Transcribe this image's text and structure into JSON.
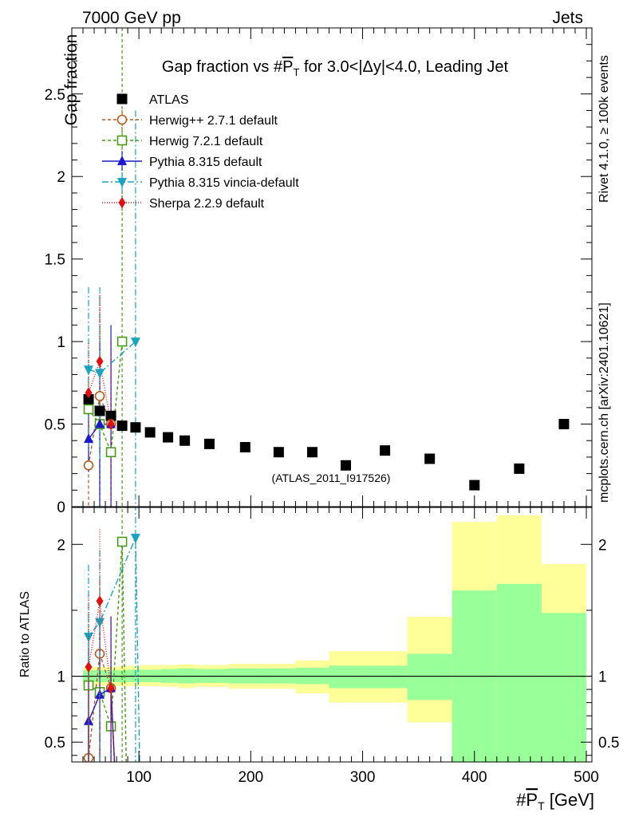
{
  "header": {
    "left": "7000 GeV pp",
    "right": "Jets"
  },
  "side_labels": {
    "rivet": "Rivet 4.1.0, ≥ 100k events",
    "mcplots": "mcplots.cern.ch [arXiv:2401.10621]"
  },
  "colors": {
    "atlas": "#000000",
    "herwigpp": "#b35a1f",
    "herwig7": "#4a9a1a",
    "pythia_default": "#1a1acc",
    "pythia_vincia": "#1aa3bf",
    "sherpa": "#e01010",
    "band_outer": "#ffff99",
    "band_inner": "#99ff99"
  },
  "chart_data": [
    {
      "type": "scatter",
      "panel": "main",
      "title": "Gap fraction vs #P_T for 3.0<|Δy|<4.0, Leading Jet",
      "title_pre": "Gap fraction vs #",
      "title_post": " for 3.0<|Δy|<4.0, Leading Jet",
      "ylabel": "Gap fraction",
      "watermark": "(ATLAS_2011_I917526)",
      "xlim": [
        40,
        505
      ],
      "ylim": [
        0,
        2.9
      ],
      "yticks": [
        0,
        0.5,
        1,
        1.5,
        2,
        2.5
      ],
      "ytick_labels": [
        "0",
        "0.5",
        "1",
        "1.5",
        "2",
        "2.5"
      ],
      "legend_position": "top-left",
      "series": [
        {
          "name": "ATLAS",
          "key": "atlas",
          "marker": "square-filled",
          "x": [
            55,
            65,
            75,
            85,
            97,
            110,
            126,
            141,
            163,
            195,
            225,
            255,
            285,
            320,
            360,
            400,
            440,
            480
          ],
          "y": [
            0.65,
            0.58,
            0.55,
            0.49,
            0.48,
            0.45,
            0.42,
            0.4,
            0.38,
            0.36,
            0.33,
            0.33,
            0.25,
            0.34,
            0.29,
            0.13,
            0.23,
            0.5
          ]
        },
        {
          "name": "Herwig++ 2.7.1 default",
          "key": "herwigpp",
          "marker": "circle-open",
          "dash": "4,3",
          "x": [
            55,
            65,
            75
          ],
          "y": [
            0.25,
            0.67,
            0.5
          ],
          "err": [
            0.25,
            0.6,
            0.5
          ]
        },
        {
          "name": "Herwig 7.2.1 default",
          "key": "herwig7",
          "marker": "square-open",
          "dash": "4,3",
          "x": [
            55,
            65,
            75,
            85
          ],
          "y": [
            0.59,
            0.5,
            0.33,
            1.0
          ],
          "err": [
            0.3,
            0.6,
            0.33,
            1.9
          ]
        },
        {
          "name": "Pythia 8.315 default",
          "key": "pythia_default",
          "marker": "triangle-up",
          "dash": "",
          "x": [
            55,
            65,
            75
          ],
          "y": [
            0.41,
            0.5,
            0.5
          ],
          "err": [
            0.2,
            0.5,
            0.6
          ]
        },
        {
          "name": "Pythia 8.315 vincia-default",
          "key": "pythia_vincia",
          "marker": "triangle-down",
          "dash": "8,3,2,3",
          "x": [
            55,
            65,
            97
          ],
          "y": [
            0.83,
            0.81,
            1.0
          ],
          "err": [
            0.5,
            0.52,
            1.4
          ]
        },
        {
          "name": "Sherpa 2.2.9 default",
          "key": "sherpa",
          "marker": "diamond",
          "dash": "1,2",
          "x": [
            55,
            65,
            75
          ],
          "y": [
            0.69,
            0.88,
            0.5
          ],
          "err": [
            0.3,
            0.4,
            0.5
          ]
        }
      ]
    },
    {
      "type": "area",
      "panel": "ratio",
      "ylabel": "Ratio to ATLAS",
      "xlabel_pre": "#",
      "xlabel_post": " [GeV]",
      "xlim": [
        40,
        505
      ],
      "ylim": [
        0.35,
        2.28
      ],
      "xticks": [
        100,
        200,
        300,
        400,
        500
      ],
      "xtick_labels": [
        "100",
        "200",
        "300",
        "400",
        "500"
      ],
      "yticks": [
        0.5,
        1,
        2
      ],
      "ytick_labels": [
        "0.5",
        "1",
        "2"
      ],
      "reference_line": 1,
      "bins": [
        {
          "lo": 50,
          "hi": 60,
          "outer": [
            0.93,
            1.07
          ],
          "inner": [
            0.955,
            1.045
          ]
        },
        {
          "lo": 60,
          "hi": 70,
          "outer": [
            0.93,
            1.07
          ],
          "inner": [
            0.955,
            1.045
          ]
        },
        {
          "lo": 70,
          "hi": 80,
          "outer": [
            0.93,
            1.07
          ],
          "inner": [
            0.955,
            1.045
          ]
        },
        {
          "lo": 80,
          "hi": 90,
          "outer": [
            0.925,
            1.075
          ],
          "inner": [
            0.955,
            1.045
          ]
        },
        {
          "lo": 90,
          "hi": 105,
          "outer": [
            0.925,
            1.08
          ],
          "inner": [
            0.955,
            1.05
          ]
        },
        {
          "lo": 105,
          "hi": 120,
          "outer": [
            0.925,
            1.085
          ],
          "inner": [
            0.955,
            1.05
          ]
        },
        {
          "lo": 120,
          "hi": 135,
          "outer": [
            0.92,
            1.085
          ],
          "inner": [
            0.95,
            1.055
          ]
        },
        {
          "lo": 135,
          "hi": 150,
          "outer": [
            0.91,
            1.09
          ],
          "inner": [
            0.945,
            1.06
          ]
        },
        {
          "lo": 150,
          "hi": 180,
          "outer": [
            0.92,
            1.085
          ],
          "inner": [
            0.95,
            1.055
          ]
        },
        {
          "lo": 180,
          "hi": 210,
          "outer": [
            0.905,
            1.095
          ],
          "inner": [
            0.945,
            1.06
          ]
        },
        {
          "lo": 210,
          "hi": 240,
          "outer": [
            0.905,
            1.095
          ],
          "inner": [
            0.945,
            1.06
          ]
        },
        {
          "lo": 240,
          "hi": 270,
          "outer": [
            0.87,
            1.12
          ],
          "inner": [
            0.94,
            1.065
          ]
        },
        {
          "lo": 270,
          "hi": 300,
          "outer": [
            0.8,
            1.19
          ],
          "inner": [
            0.91,
            1.08
          ]
        },
        {
          "lo": 300,
          "hi": 340,
          "outer": [
            0.8,
            1.19
          ],
          "inner": [
            0.91,
            1.08
          ]
        },
        {
          "lo": 340,
          "hi": 380,
          "outer": [
            0.65,
            1.45
          ],
          "inner": [
            0.82,
            1.17
          ]
        },
        {
          "lo": 380,
          "hi": 420,
          "outer": [
            0.3,
            2.17
          ],
          "inner": [
            0.3,
            1.65
          ]
        },
        {
          "lo": 420,
          "hi": 460,
          "outer": [
            0.3,
            2.22
          ],
          "inner": [
            0.3,
            1.7
          ]
        },
        {
          "lo": 460,
          "hi": 500,
          "outer": [
            0.62,
            1.85
          ],
          "inner": [
            0.3,
            1.48
          ]
        }
      ],
      "series": [
        {
          "key": "herwigpp",
          "x": [
            55,
            65,
            75
          ],
          "y": [
            0.38,
            1.17,
            0.91
          ]
        },
        {
          "key": "herwig7",
          "x": [
            55,
            65,
            75,
            85
          ],
          "y": [
            0.93,
            0.88,
            0.62,
            2.02
          ]
        },
        {
          "key": "pythia_default",
          "x": [
            55,
            65,
            75
          ],
          "y": [
            0.66,
            0.86,
            0.91
          ]
        },
        {
          "key": "pythia_vincia",
          "x": [
            55,
            65,
            97
          ],
          "y": [
            1.3,
            1.41,
            2.05
          ]
        },
        {
          "key": "sherpa",
          "x": [
            55,
            65,
            75
          ],
          "y": [
            1.07,
            1.57,
            0.91
          ]
        }
      ]
    }
  ]
}
